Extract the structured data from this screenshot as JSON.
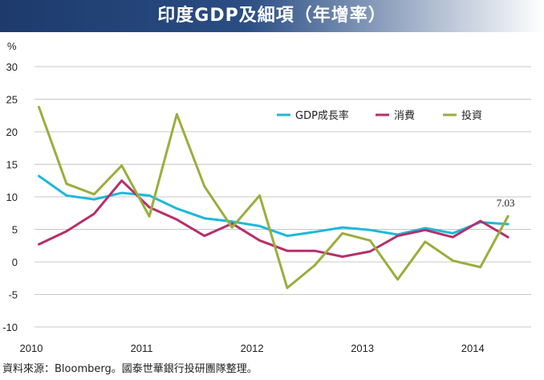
{
  "title": "印度GDP及細項（年增率）",
  "footnote": "資料來源：Bloomberg。國泰世華銀行投研團隊整理。",
  "chart_data": {
    "type": "line",
    "title": "印度GDP及細項（年增率）",
    "ylabel": "%",
    "xlabel": "",
    "ylim": [
      -10,
      30
    ],
    "yticks": [
      -10,
      -5,
      0,
      5,
      10,
      15,
      20,
      25,
      30
    ],
    "xlim": [
      2010.0,
      2014.5
    ],
    "xticks": [
      2010,
      2011,
      2012,
      2013,
      2014
    ],
    "xtick_labels": [
      "2010",
      "2011",
      "2012",
      "2013",
      "2014"
    ],
    "grid": true,
    "legend_position": "top-right",
    "x": [
      2010.04,
      2010.29,
      2010.54,
      2010.79,
      2011.04,
      2011.29,
      2011.54,
      2011.79,
      2012.04,
      2012.29,
      2012.54,
      2012.79,
      2013.04,
      2013.29,
      2013.54,
      2013.79,
      2014.04,
      2014.29
    ],
    "series": [
      {
        "name": "GDP成長率",
        "color": "#1fb8d9",
        "values": [
          13.2,
          10.2,
          9.6,
          10.6,
          10.2,
          8.2,
          6.7,
          6.2,
          5.5,
          4.0,
          4.6,
          5.3,
          4.9,
          4.2,
          5.2,
          4.4,
          6.1,
          5.8
        ]
      },
      {
        "name": "消費",
        "color": "#b5306a",
        "values": [
          2.7,
          4.7,
          7.4,
          12.5,
          8.4,
          6.5,
          4.0,
          5.9,
          3.3,
          1.7,
          1.7,
          0.8,
          1.6,
          4.0,
          4.9,
          3.8,
          6.3,
          3.8
        ]
      },
      {
        "name": "投資",
        "color": "#9aae3d",
        "values": [
          23.8,
          12.0,
          10.4,
          14.8,
          7.0,
          22.7,
          11.6,
          5.3,
          10.2,
          -4.0,
          -0.5,
          4.4,
          3.3,
          -2.7,
          3.1,
          0.2,
          -0.8,
          7.03
        ]
      }
    ],
    "annotations": [
      {
        "text": "7.03",
        "series": "投資",
        "index": 17
      }
    ]
  }
}
